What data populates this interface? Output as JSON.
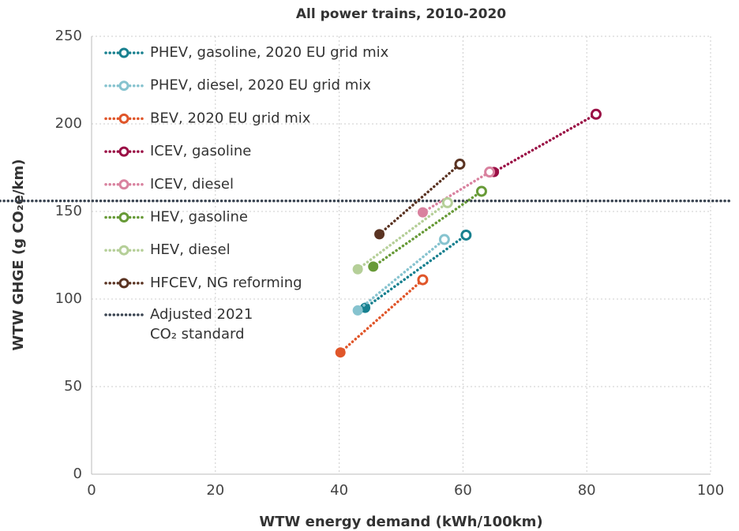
{
  "chart_data": {
    "type": "scatter",
    "title": "All power trains, 2010-2020",
    "x_label": "WTW energy demand (kWh/100km)",
    "y_label": "WTW GHGE (g CO₂e/km)",
    "xlim": [
      0,
      100
    ],
    "xticks": [
      0,
      20,
      40,
      60,
      80,
      100
    ],
    "ylim": [
      0,
      250
    ],
    "yticks": [
      0,
      50,
      100,
      150,
      200,
      250
    ],
    "grid": true,
    "series": [
      {
        "name": "PHEV, gasoline, 2020 EU grid mix",
        "color": "#17808f",
        "x": [
          44.2,
          60.5
        ],
        "values": [
          95,
          136.5
        ]
      },
      {
        "name": "PHEV, diesel, 2020 EU grid mix",
        "color": "#86c3cf",
        "x": [
          43,
          57
        ],
        "values": [
          93.5,
          134
        ]
      },
      {
        "name": "BEV, 2020 EU grid mix",
        "color": "#e0562a",
        "x": [
          40.2,
          53.5
        ],
        "values": [
          69.5,
          111
        ]
      },
      {
        "name": "ICEV, gasoline",
        "color": "#9a0f45",
        "x": [
          65,
          81.5
        ],
        "values": [
          172.5,
          205.5
        ]
      },
      {
        "name": "ICEV, diesel",
        "color": "#d9829f",
        "x": [
          53.5,
          64.3
        ],
        "values": [
          149.5,
          172.5
        ]
      },
      {
        "name": "HEV, gasoline",
        "color": "#679a37",
        "x": [
          45.5,
          63
        ],
        "values": [
          118.5,
          161.5
        ]
      },
      {
        "name": "HEV, diesel",
        "color": "#b5cf98",
        "x": [
          43,
          57.5
        ],
        "values": [
          117,
          155
        ]
      },
      {
        "name": "HFCEV, NG reforming",
        "color": "#5a3322",
        "x": [
          46.5,
          59.5
        ],
        "values": [
          137,
          177
        ]
      }
    ],
    "reference_line": {
      "name": [
        "Adjusted 2021",
        "CO₂ standard"
      ],
      "color": "#3b4552",
      "value": 156
    }
  }
}
